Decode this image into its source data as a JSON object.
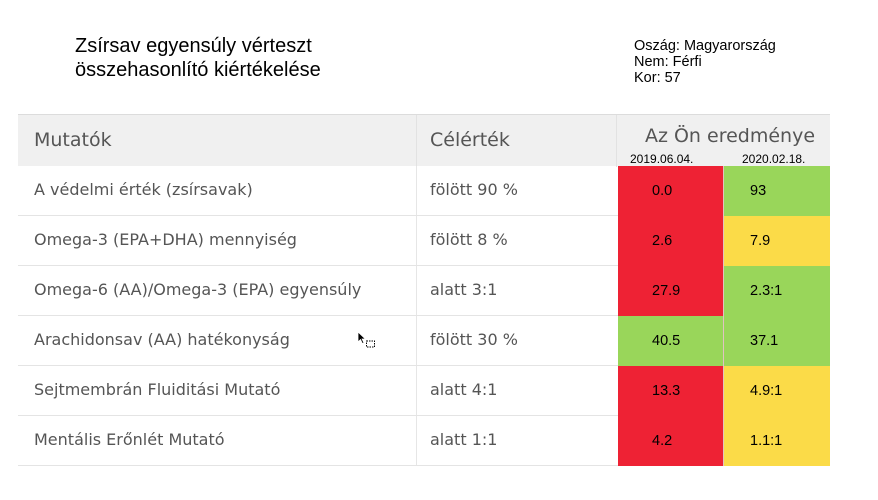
{
  "title": {
    "line1": "Zsírsav egyensúly vérteszt",
    "line2": "összehasonlító kiértékelése"
  },
  "meta": {
    "country": "Oszág: Magyarország",
    "gender": "Nem: Férfi",
    "age": "Kor: 57"
  },
  "table": {
    "headers": {
      "indicator": "Mutatók",
      "target": "Célérték",
      "result": "Az Ön eredménye"
    },
    "dates": [
      "2019.06.04.",
      "2020.02.18."
    ],
    "rows": [
      {
        "label": "A védelmi érték (zsírsavak)",
        "target": "fölött 90 %",
        "r1": "0.0",
        "r2": "93",
        "c1": "#ee2234",
        "c2": "#99d65a"
      },
      {
        "label": "Omega-3 (EPA+DHA) mennyiség",
        "target": "fölött 8 %",
        "r1": "2.6",
        "r2": "7.9",
        "c1": "#ee2234",
        "c2": "#fbdb48"
      },
      {
        "label": "Omega-6 (AA)/Omega-3 (EPA) egyensúly",
        "target": "alatt 3:1",
        "r1": "27.9",
        "r2": "2.3:1",
        "c1": "#ee2234",
        "c2": "#99d65a"
      },
      {
        "label": "Arachidonsav (AA)  hatékonyság",
        "target": "fölött 30 %",
        "r1": "40.5",
        "r2": "37.1",
        "c1": "#99d65a",
        "c2": "#99d65a"
      },
      {
        "label": "Sejtmembrán Fluiditási Mutató",
        "target": "alatt 4:1",
        "r1": "13.3",
        "r2": "4.9:1",
        "c1": "#ee2234",
        "c2": "#fbdb48"
      },
      {
        "label": "Mentális Erőnlét Mutató",
        "target": "alatt 1:1",
        "r1": "4.2",
        "r2": "1.1:1",
        "c1": "#ee2234",
        "c2": "#fbdb48"
      }
    ]
  },
  "icons": {
    "cursor": "mouse-pointer-with-copy-icon"
  }
}
